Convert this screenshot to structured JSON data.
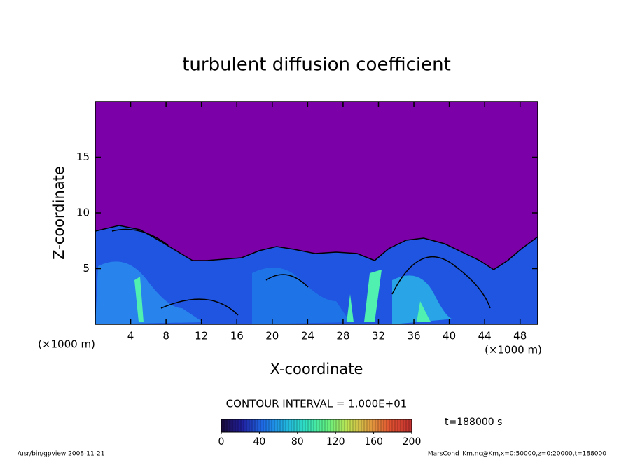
{
  "chart_data": {
    "type": "contour",
    "title": "turbulent diffusion coefficient",
    "xlabel": "X-coordinate",
    "ylabel": "Z-coordinate",
    "x_unit": "(×1000 m)",
    "y_unit": "(×1000 m)",
    "xlim": [
      0,
      50
    ],
    "ylim": [
      0,
      20
    ],
    "xticks": [
      4,
      8,
      12,
      16,
      20,
      24,
      28,
      32,
      36,
      40,
      44,
      48
    ],
    "yticks": [
      5,
      10,
      15
    ],
    "contour_interval": "CONTOUR INTERVAL = 1.000E+01",
    "colorbar": {
      "lim": [
        0,
        200
      ],
      "ticks": [
        0,
        40,
        80,
        120,
        160,
        200
      ],
      "colormap": [
        "#1a0a3a",
        "#2020a0",
        "#1e6ee8",
        "#20b0e0",
        "#30e0c0",
        "#60f080",
        "#c0e050",
        "#e0a040",
        "#e05030",
        "#c03030"
      ]
    },
    "time_label": "t=188000 s",
    "footer_left": "/usr/bin/gpview  2008-11-21",
    "footer_right": "MarsCond_Km.nc@Km,x=0:50000,z=0:20000,t=188000"
  }
}
